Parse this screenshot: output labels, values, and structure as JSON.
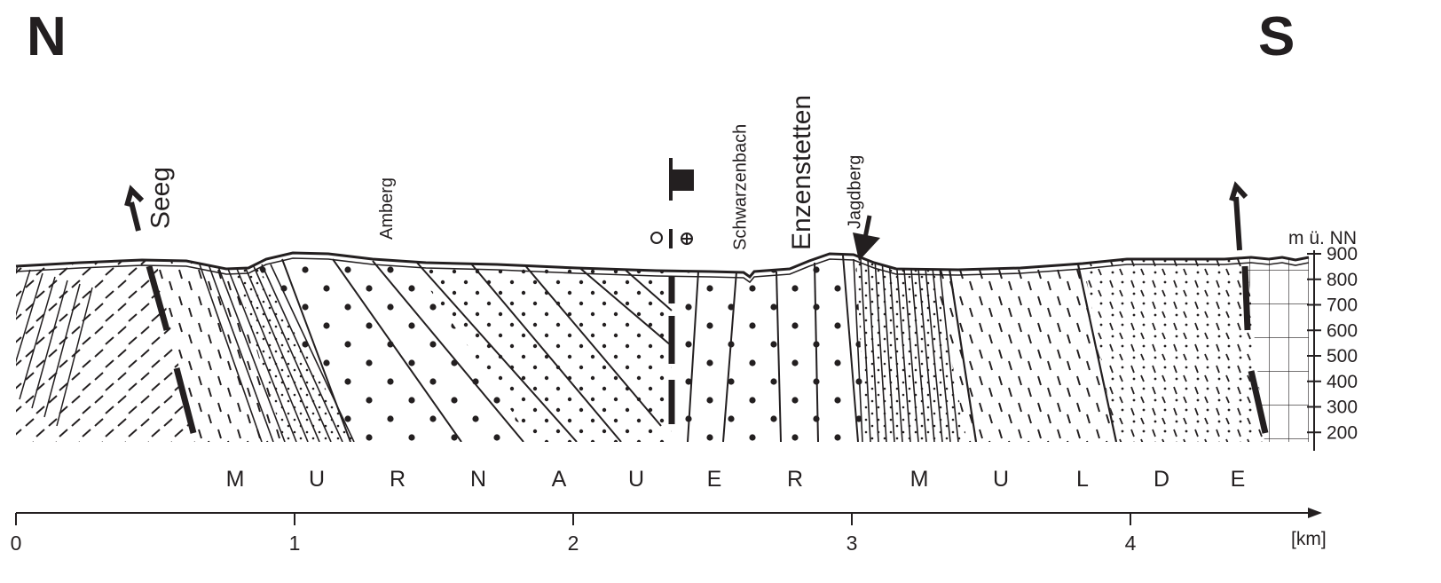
{
  "directions": {
    "north": "N",
    "south": "S"
  },
  "places": [
    {
      "name": "Seeg",
      "km": 0.55
    },
    {
      "name": "Amberg",
      "km": 1.35
    },
    {
      "name": "Schwarzenbach",
      "km": 2.62
    },
    {
      "name": "Enzenstetten",
      "km": 2.85
    },
    {
      "name": "Jagdberg",
      "km": 3.03
    }
  ],
  "basin_label": [
    "M",
    "U",
    "R",
    "N",
    "A",
    "U",
    "E",
    "R",
    "M",
    "U",
    "L",
    "D",
    "E"
  ],
  "elevation_axis": {
    "title": "m ü. NN",
    "ticks": [
      900,
      800,
      700,
      600,
      500,
      400,
      300,
      200
    ]
  },
  "distance_axis": {
    "ticks": [
      0,
      1,
      2,
      3,
      4
    ],
    "unit": "[km]",
    "range": [
      0,
      4.7
    ]
  },
  "colors": {
    "ink": "#231f20",
    "background": "#ffffff"
  },
  "symbols": {
    "borehole": "borehole-symbol",
    "fault_arrows": "fault-arrow-icon",
    "location_arrow": "location-arrow-icon"
  }
}
